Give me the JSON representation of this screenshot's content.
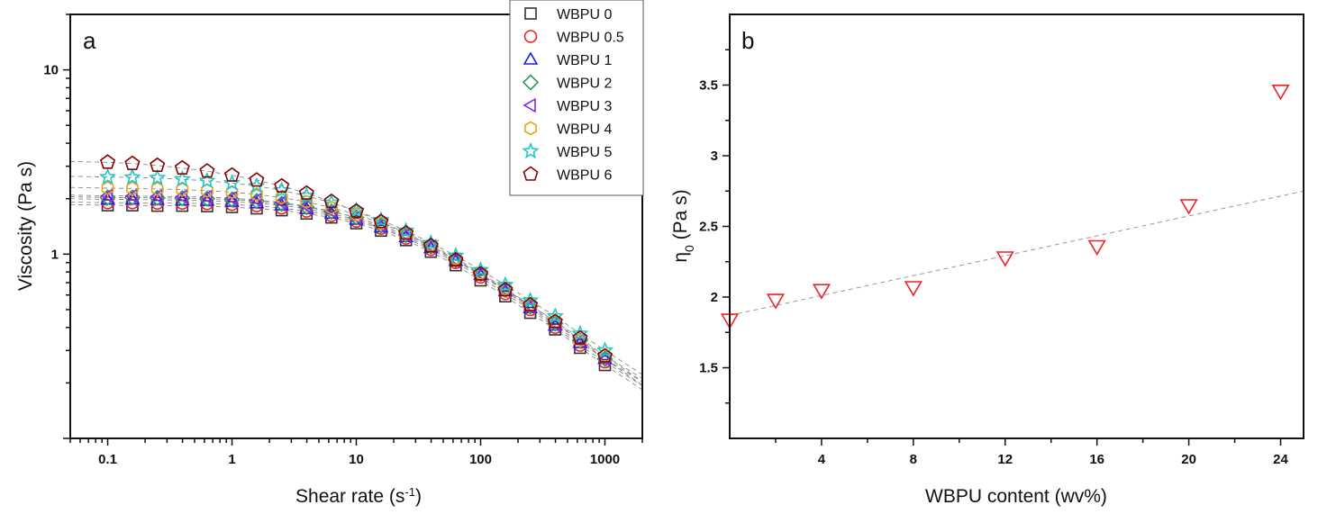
{
  "chart_data": [
    {
      "type": "scatter",
      "panel_label": "a",
      "xlabel": "Shear rate (s",
      "xlabel_sup": "-1",
      "xlabel_close": ")",
      "ylabel": "Viscosity (Pa s)",
      "xscale": "log",
      "yscale": "log",
      "xlim": [
        0.05,
        2000
      ],
      "ylim": [
        0.1,
        20
      ],
      "xticks": [
        0.1,
        1,
        10,
        100,
        1000
      ],
      "xtick_labels": [
        "0.1",
        "1",
        "10",
        "100",
        "1000"
      ],
      "yticks": [
        1,
        10
      ],
      "ytick_labels": [
        "1",
        "10"
      ],
      "grid": false,
      "legend_position": "top-right",
      "fit_lines": "dashed gray fit curves per series",
      "x": [
        0.1,
        0.158,
        0.251,
        0.398,
        0.631,
        1,
        1.58,
        2.51,
        3.98,
        6.31,
        10,
        15.8,
        25.1,
        39.8,
        63.1,
        100,
        158,
        251,
        398,
        631,
        1000
      ],
      "series": [
        {
          "name": "WBPU 0",
          "marker": "square",
          "color": "#333333",
          "values": [
            1.84,
            1.84,
            1.83,
            1.83,
            1.82,
            1.8,
            1.77,
            1.73,
            1.66,
            1.58,
            1.47,
            1.34,
            1.19,
            1.03,
            0.87,
            0.72,
            0.59,
            0.48,
            0.39,
            0.31,
            0.25
          ]
        },
        {
          "name": "WBPU 0.5",
          "marker": "circle",
          "color": "#ee2222",
          "values": [
            1.9,
            1.9,
            1.89,
            1.89,
            1.88,
            1.86,
            1.83,
            1.78,
            1.71,
            1.62,
            1.51,
            1.38,
            1.22,
            1.06,
            0.9,
            0.75,
            0.61,
            0.5,
            0.4,
            0.32,
            0.26
          ]
        },
        {
          "name": "WBPU 1",
          "marker": "triangle-up",
          "color": "#1a1aee",
          "values": [
            1.98,
            1.98,
            1.97,
            1.96,
            1.95,
            1.93,
            1.89,
            1.84,
            1.76,
            1.66,
            1.54,
            1.4,
            1.24,
            1.08,
            0.92,
            0.77,
            0.63,
            0.51,
            0.41,
            0.33,
            0.27
          ]
        },
        {
          "name": "WBPU 2",
          "marker": "diamond",
          "color": "#2a9d5c",
          "values": [
            2.03,
            2.03,
            2.02,
            2.01,
            2.0,
            1.98,
            1.94,
            1.88,
            1.8,
            1.7,
            1.58,
            1.43,
            1.27,
            1.1,
            0.93,
            0.78,
            0.64,
            0.52,
            0.42,
            0.34,
            0.27
          ]
        },
        {
          "name": "WBPU 3",
          "marker": "triangle-left",
          "color": "#8a2be2",
          "values": [
            2.07,
            2.07,
            2.06,
            2.05,
            2.04,
            2.01,
            1.97,
            1.91,
            1.82,
            1.71,
            1.58,
            1.43,
            1.27,
            1.1,
            0.93,
            0.78,
            0.64,
            0.52,
            0.42,
            0.34,
            0.27
          ]
        },
        {
          "name": "WBPU 4",
          "marker": "hexagon",
          "color": "#e8a317",
          "values": [
            2.28,
            2.27,
            2.26,
            2.24,
            2.21,
            2.17,
            2.11,
            2.03,
            1.92,
            1.79,
            1.64,
            1.47,
            1.3,
            1.12,
            0.95,
            0.79,
            0.65,
            0.53,
            0.43,
            0.34,
            0.28
          ]
        },
        {
          "name": "WBPU 5",
          "marker": "star",
          "color": "#1ec8c8",
          "values": [
            2.62,
            2.61,
            2.59,
            2.55,
            2.5,
            2.43,
            2.34,
            2.22,
            2.07,
            1.9,
            1.72,
            1.53,
            1.34,
            1.15,
            0.98,
            0.82,
            0.68,
            0.56,
            0.46,
            0.37,
            0.3
          ]
        },
        {
          "name": "WBPU 6",
          "marker": "pentagon",
          "color": "#8b0000",
          "values": [
            3.15,
            3.1,
            3.03,
            2.93,
            2.82,
            2.68,
            2.52,
            2.34,
            2.14,
            1.93,
            1.71,
            1.5,
            1.3,
            1.11,
            0.93,
            0.78,
            0.64,
            0.53,
            0.43,
            0.35,
            0.28
          ]
        }
      ]
    },
    {
      "type": "scatter",
      "panel_label": "b",
      "xlabel": "WBPU content (wv%)",
      "ylabel": "η",
      "ylabel_sub": "0",
      "ylabel_rest": " (Pa s)",
      "xlim": [
        0,
        25
      ],
      "ylim": [
        1.0,
        4.0
      ],
      "xticks": [
        4,
        8,
        12,
        16,
        20,
        24
      ],
      "xtick_labels": [
        "4",
        "8",
        "12",
        "16",
        "20",
        "24"
      ],
      "yticks": [
        1.5,
        2,
        2.5,
        3,
        3.5
      ],
      "ytick_labels": [
        "1.5",
        "2",
        "2.5",
        "3",
        "3.5"
      ],
      "grid": false,
      "series": [
        {
          "name": "η0",
          "marker": "triangle-down",
          "color": "#ee2222",
          "x": [
            0,
            2,
            4,
            8,
            12,
            16,
            20,
            24
          ],
          "values": [
            1.84,
            1.98,
            2.05,
            2.07,
            2.28,
            2.36,
            2.65,
            3.46
          ]
        }
      ],
      "fit_line": {
        "style": "dashed",
        "color": "#999999",
        "x": [
          0,
          25
        ],
        "values": [
          1.87,
          2.75
        ]
      }
    }
  ]
}
